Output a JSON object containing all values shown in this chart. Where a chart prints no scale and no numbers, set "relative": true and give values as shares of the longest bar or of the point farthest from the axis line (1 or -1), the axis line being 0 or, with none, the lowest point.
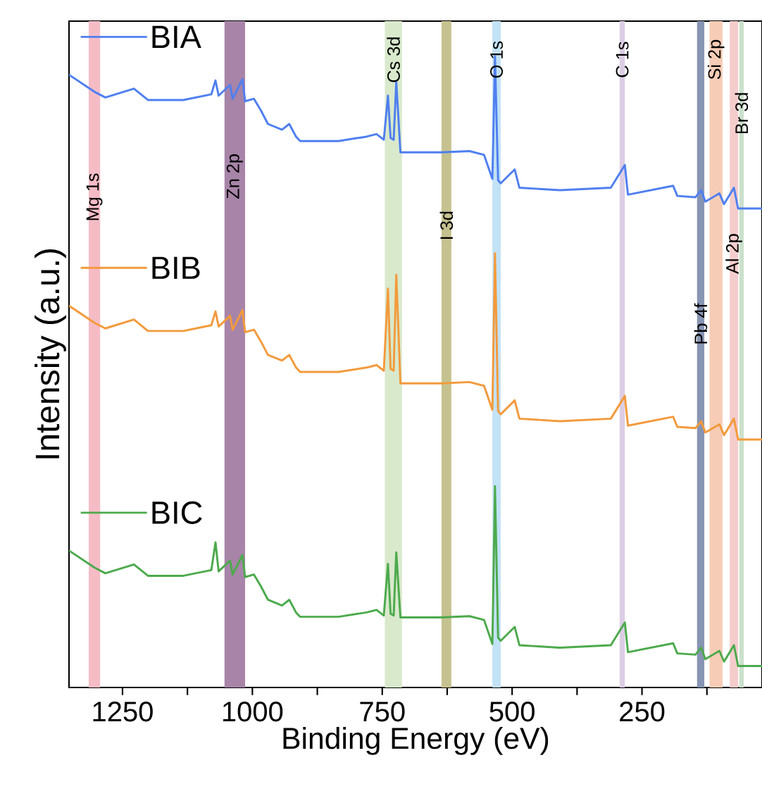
{
  "chart_data": {
    "type": "line",
    "relative": true,
    "xlabel": "Binding Energy (eV)",
    "ylabel": "Intensity (a.u.)",
    "xlim": [
      1353,
      19
    ],
    "legend": "left",
    "xticks": [
      1250,
      {
        "value": 1125,
        "label": null
      },
      1000,
      {
        "value": 875,
        "label": null
      },
      750,
      {
        "value": 625,
        "label": null
      },
      500,
      {
        "value": 375,
        "label": null
      },
      250,
      {
        "value": 125,
        "label": null
      }
    ],
    "tick_labels": "x",
    "x": [
      1353,
      1304,
      1283,
      1228,
      1201,
      1133,
      1079,
      1071,
      1065,
      1043,
      1038,
      1019,
      1014,
      997,
      984,
      970,
      943,
      929,
      916,
      908,
      834,
      780,
      761,
      747,
      739,
      734,
      728,
      723,
      715,
      636,
      582,
      554,
      538,
      533,
      527,
      522,
      495,
      486,
      408,
      310,
      283,
      277,
      190,
      182,
      147,
      136,
      128,
      101,
      92,
      73,
      65,
      19
    ],
    "series": [
      {
        "name": "BIA",
        "color": "#4f7ff0",
        "values": [
          0.971,
          0.944,
          0.935,
          0.949,
          0.931,
          0.931,
          0.94,
          0.962,
          0.938,
          0.955,
          0.933,
          0.964,
          0.929,
          0.933,
          0.915,
          0.893,
          0.884,
          0.893,
          0.873,
          0.866,
          0.866,
          0.873,
          0.877,
          0.868,
          0.938,
          0.871,
          0.868,
          0.96,
          0.848,
          0.848,
          0.85,
          0.844,
          0.806,
          1.0,
          0.804,
          0.799,
          0.821,
          0.792,
          0.788,
          0.792,
          0.828,
          0.781,
          0.795,
          0.779,
          0.777,
          0.788,
          0.77,
          0.783,
          0.766,
          0.792,
          0.759,
          0.759
        ]
      },
      {
        "name": "BIB",
        "color": "#f39a3c",
        "values": [
          0.605,
          0.578,
          0.569,
          0.583,
          0.565,
          0.565,
          0.574,
          0.596,
          0.572,
          0.589,
          0.567,
          0.598,
          0.563,
          0.567,
          0.549,
          0.527,
          0.518,
          0.527,
          0.507,
          0.5,
          0.5,
          0.507,
          0.511,
          0.502,
          0.632,
          0.505,
          0.502,
          0.654,
          0.482,
          0.482,
          0.484,
          0.478,
          0.44,
          0.688,
          0.438,
          0.433,
          0.455,
          0.426,
          0.422,
          0.426,
          0.462,
          0.415,
          0.429,
          0.413,
          0.411,
          0.422,
          0.404,
          0.417,
          0.4,
          0.426,
          0.393,
          0.393
        ]
      },
      {
        "name": "BIC",
        "color": "#4caa4c",
        "values": [
          0.217,
          0.19,
          0.181,
          0.195,
          0.177,
          0.177,
          0.186,
          0.23,
          0.184,
          0.201,
          0.179,
          0.21,
          0.175,
          0.179,
          0.161,
          0.139,
          0.13,
          0.139,
          0.119,
          0.112,
          0.112,
          0.119,
          0.123,
          0.114,
          0.196,
          0.117,
          0.114,
          0.214,
          0.111,
          0.111,
          0.113,
          0.107,
          0.069,
          0.319,
          0.079,
          0.074,
          0.096,
          0.067,
          0.063,
          0.067,
          0.103,
          0.056,
          0.07,
          0.054,
          0.052,
          0.063,
          0.045,
          0.058,
          0.041,
          0.067,
          0.034,
          0.034
        ]
      }
    ],
    "bands": [
      {
        "axis": "x",
        "from": 1315,
        "to": 1293,
        "label": "Mg 1s",
        "color": "#f5bcc6"
      },
      {
        "axis": "x",
        "from": 1054,
        "to": 1014,
        "label": "Zn 2p",
        "color": "#a784a8"
      },
      {
        "axis": "x",
        "from": 745,
        "to": 712,
        "label": "Cs 3d",
        "color": "#d9e9cc"
      },
      {
        "axis": "x",
        "from": 636,
        "to": 617,
        "label": "I 3d",
        "color": "#c5c28f"
      },
      {
        "axis": "x",
        "from": 538,
        "to": 522,
        "label": "O 1s",
        "color": "#c2e2f5"
      },
      {
        "axis": "x",
        "from": 293,
        "to": 283,
        "label": "C 1s",
        "color": "#dccde4"
      },
      {
        "axis": "x",
        "from": 144,
        "to": 130,
        "label": "Pb 4f",
        "color": "#8794b3"
      },
      {
        "axis": "x",
        "from": 120,
        "to": 95,
        "label": "Si 2p",
        "color": "#f7ccb6"
      },
      {
        "axis": "x",
        "from": 81,
        "to": 65,
        "label": "Al 2p",
        "color": "#f5cccc"
      },
      {
        "axis": "x",
        "from": 63,
        "to": 54,
        "label": "Br 3d",
        "color": "#cce0cc"
      }
    ]
  }
}
